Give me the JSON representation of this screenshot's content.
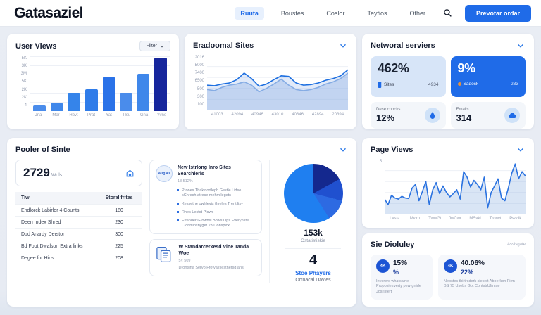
{
  "accent_color": "#1f6be8",
  "navy_color": "#16269c",
  "header": {
    "logo": "Gatasaziel",
    "nav": [
      {
        "label": "Ruuta",
        "active": true
      },
      {
        "label": "Boustes",
        "active": false
      },
      {
        "label": "Coslor",
        "active": false
      },
      {
        "label": "Teyfios",
        "active": false
      },
      {
        "label": "Other",
        "active": false
      }
    ],
    "cta_label": "Prevotar ordar"
  },
  "cards": {
    "user_views": {
      "title": "User Views",
      "filter_label": "Filter"
    },
    "sites": {
      "title": "Eradoomal Sites"
    },
    "network": {
      "title": "Networal serviers",
      "tiles": [
        {
          "value": "462%",
          "label": "Sites",
          "count": "4934"
        },
        {
          "value": "9%",
          "label": "Sadock",
          "count": "233"
        },
        {
          "label": "Dese chocks",
          "value": "12%"
        },
        {
          "label": "Emails",
          "value": "314"
        }
      ]
    },
    "pooler": {
      "title": "Pooler of Sinte",
      "stat_value": "2729",
      "stat_unit": "Wols",
      "table": {
        "headers": [
          "Tiwl",
          "Storal frites"
        ],
        "rows": [
          {
            "name": "Endlorck Labirlor 4 Counts",
            "value": "180"
          },
          {
            "name": "Deen Index Shred",
            "value": "230"
          },
          {
            "name": "Dud Anardy Derstor",
            "value": "300"
          },
          {
            "name": "Bd Fobt Dwalson Extra links",
            "value": "225"
          },
          {
            "name": "Degee for Hirls",
            "value": "208"
          }
        ]
      }
    },
    "timeline": {
      "items": [
        {
          "badge": "Aug 43",
          "title": "New Istrlong Inro Sites Searchieris",
          "subtitle": "18 512%",
          "bullets": [
            "Prones Thakinortleph Gestle Lidse sChresh atrese mehmilegets",
            "Kessetne owhlevis threles Trentilisy",
            "Rhes Lestst Plows",
            "Ettander Growhsi Bows Lips Everynste Clonblinsbyget 23 Lionspick"
          ]
        },
        {
          "title": "W Standarcerkesd Vine Tanda Woe",
          "subtitle": "5× 509",
          "text": "Dront/lna Servo Frotvasfiestnersd ans"
        }
      ]
    },
    "pie_summary": {
      "total": "153k",
      "total_label": "Ostatistiskie",
      "count": "4",
      "count_label": "Stoe Phayers",
      "count_sub": "Orroacal Davies"
    },
    "page_views": {
      "title": "Page Views"
    },
    "site_display": {
      "title": "Sie Dioluley",
      "meta": "Assisgate",
      "tiles": [
        {
          "icon_label": "4K",
          "value": "15%",
          "sub_value": "%",
          "text": "Inverers whatsalne Proposietrverty pewrgnide Josristert"
        },
        {
          "icon_label": "4K",
          "value": "40.06%",
          "sub_value": "22%",
          "text": "Nebstes thirtrsderk siecrst Aboerkon Firm BS 75 Usebs Got ContstrUfrniae"
        }
      ]
    }
  },
  "chart_data": [
    {
      "id": "user_views_bar",
      "type": "bar",
      "title": "User Views",
      "categories": [
        "Jna",
        "Mar",
        "Hbvt",
        "Prat",
        "Yat",
        "Tlsu",
        "Gna",
        "Yvne"
      ],
      "values": [
        10,
        16,
        33,
        40,
        63,
        33,
        68,
        97
      ],
      "bar_colors": [
        "#4a8ceb",
        "#3f87ea",
        "#3584ea",
        "#2f7ce9",
        "#2a72e8",
        "#4a8ceb",
        "#3f87ea",
        "#16269c"
      ],
      "y_ticks": [
        "5K",
        "3K",
        "3M",
        "5K",
        "2K",
        "2K",
        "4"
      ],
      "ylim": [
        0,
        100
      ],
      "grid": true
    },
    {
      "id": "sites_line",
      "type": "line",
      "title": "Eradoomal Sites",
      "x_labels": [
        "41003",
        "42094",
        "40946",
        "43010",
        "40846",
        "42894",
        "20394"
      ],
      "y_ticks": [
        "2016",
        "5000",
        "7400",
        "6500",
        "500",
        "300",
        "100"
      ],
      "ylim": [
        0,
        100
      ],
      "grid": true,
      "series": [
        {
          "name": "secondary",
          "color": "#8fb4e6",
          "fill": "rgba(150,180,230,0.35)",
          "values": [
            38,
            36,
            42,
            46,
            48,
            52,
            46,
            34,
            40,
            48,
            57,
            46,
            38,
            36,
            38,
            42,
            48,
            52,
            58,
            68
          ]
        },
        {
          "name": "primary",
          "color": "#1d6fe0",
          "fill": "rgba(90,140,220,0.18)",
          "values": [
            46,
            45,
            48,
            50,
            56,
            68,
            58,
            44,
            48,
            56,
            63,
            62,
            50,
            46,
            47,
            50,
            55,
            58,
            63,
            74
          ]
        }
      ]
    },
    {
      "id": "page_views_line",
      "type": "line",
      "title": "Page Views",
      "x_labels": [
        "Lvsta",
        "Mvlm",
        "TwwGt",
        "JwCwr",
        "MSvkl",
        "Tronvt",
        "Pwvlik"
      ],
      "y_ticks": [
        "5"
      ],
      "ylim": [
        0,
        100
      ],
      "grid": true,
      "series": [
        {
          "name": "page-views",
          "color": "#2a72e0",
          "fill": "rgba(120,160,220,0.28)",
          "values": [
            28,
            18,
            35,
            30,
            28,
            33,
            30,
            29,
            48,
            55,
            25,
            42,
            60,
            18,
            45,
            58,
            38,
            52,
            40,
            32,
            38,
            45,
            28,
            78,
            68,
            50,
            62,
            55,
            45,
            68,
            12,
            40,
            52,
            65,
            30,
            25,
            48,
            75,
            92,
            65,
            78,
            70
          ]
        }
      ]
    },
    {
      "id": "traffic_pie",
      "type": "pie",
      "title": "Stoe Phayers",
      "segments": [
        {
          "value": 17,
          "color": "#14288e"
        },
        {
          "value": 12,
          "color": "#2050cf"
        },
        {
          "value": 12,
          "color": "#2d6ae2"
        },
        {
          "value": 59,
          "color": "#1f7ff0"
        }
      ],
      "center_total": "153k"
    }
  ]
}
